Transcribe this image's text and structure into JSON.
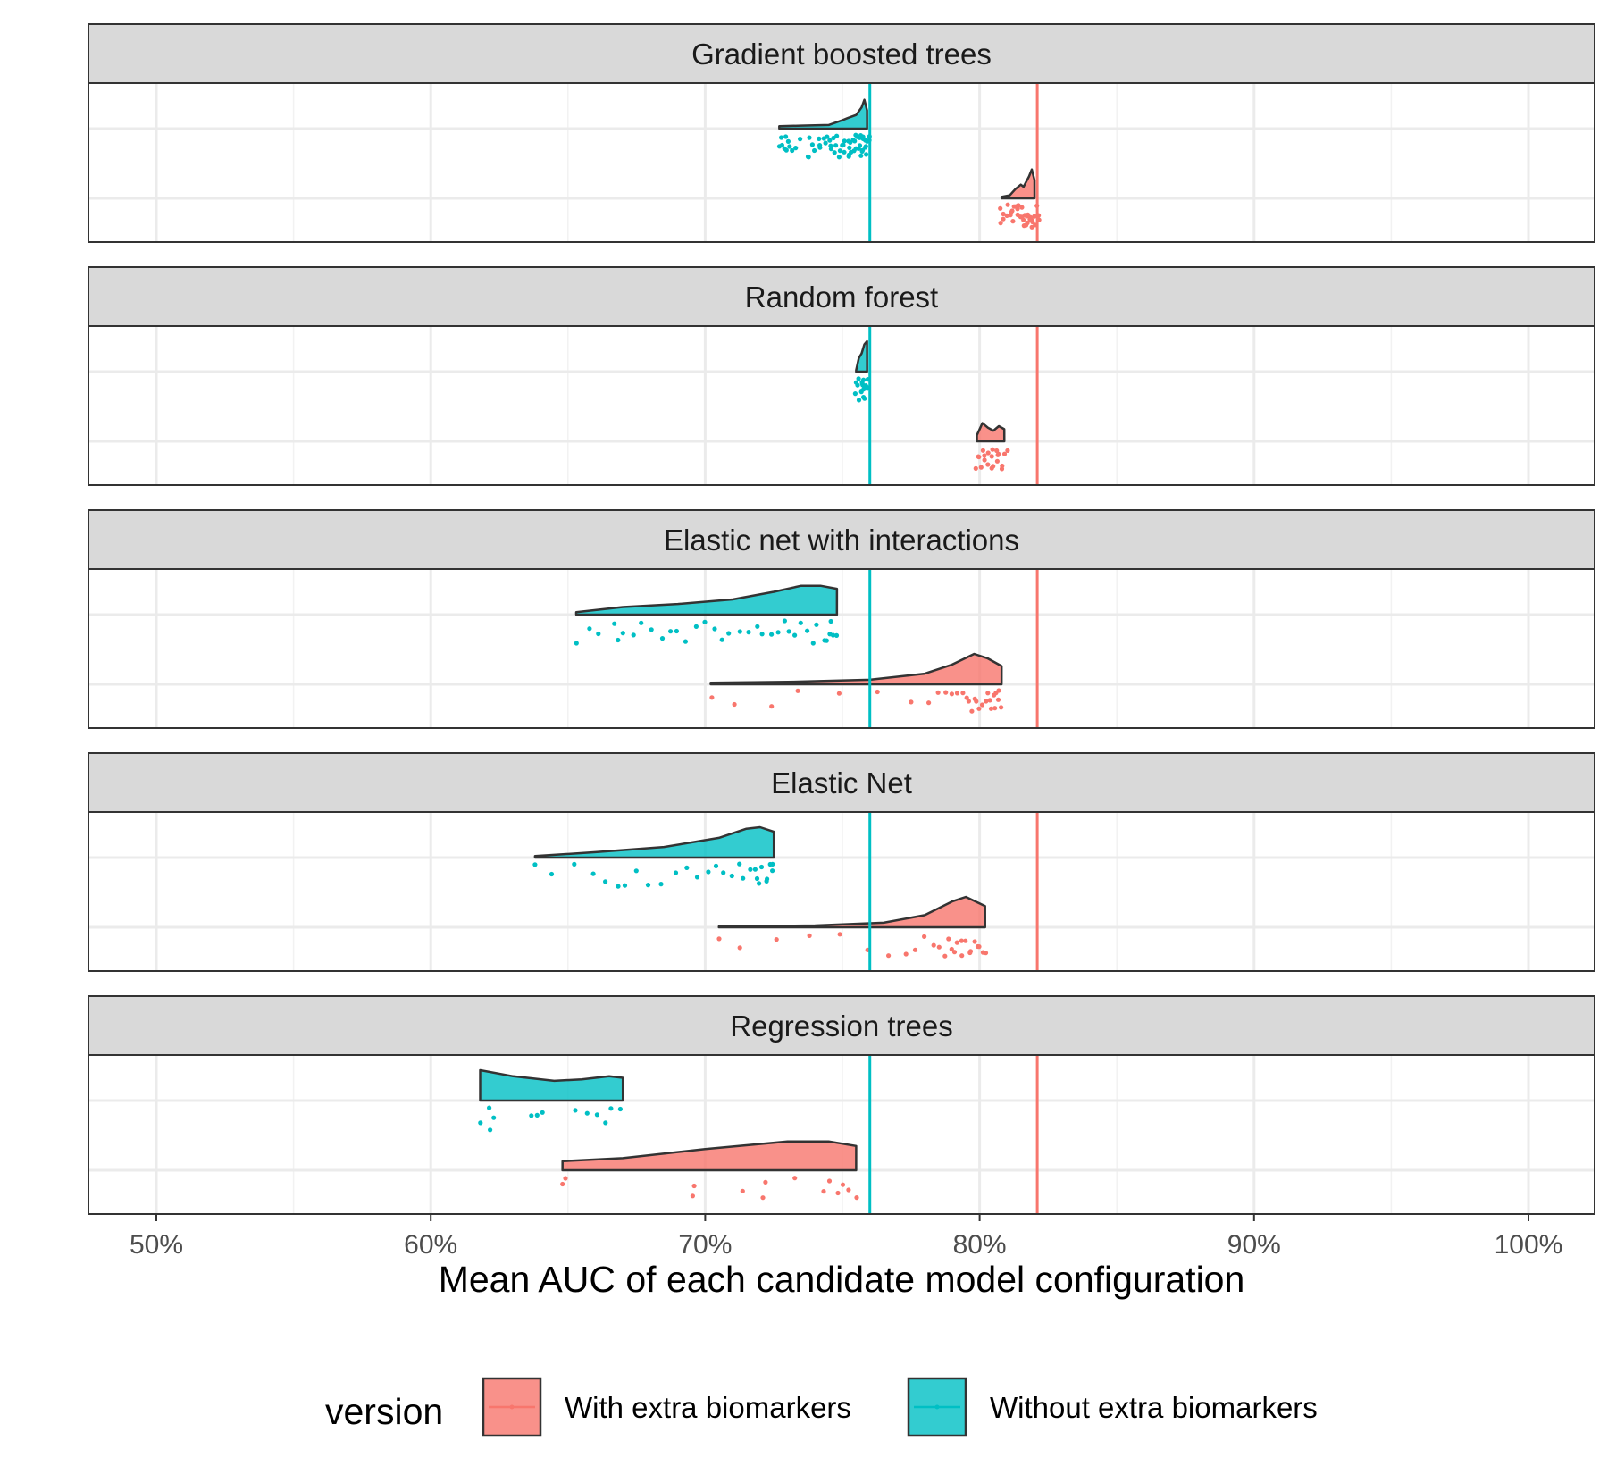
{
  "chart_data": {
    "type": "raincloud",
    "xlabel": "Mean AUC of each candidate model configuration",
    "xlim": [
      0.475,
      1.025
    ],
    "x_ticks": [
      0.5,
      0.6,
      0.7,
      0.8,
      0.9,
      1.0
    ],
    "x_tick_labels": [
      "50%",
      "60%",
      "70%",
      "80%",
      "90%",
      "100%"
    ],
    "grid": true,
    "legend": {
      "title": "version",
      "position": "bottom",
      "entries": [
        {
          "label": "With extra biomarkers",
          "color": "#F8766D"
        },
        {
          "label": "Without extra biomarkers",
          "color": "#00BFC4"
        }
      ]
    },
    "reference_lines": [
      {
        "series": "Without extra biomarkers",
        "x": 0.76,
        "color": "#00BFC4"
      },
      {
        "series": "With extra biomarkers",
        "x": 0.821,
        "color": "#F8766D"
      }
    ],
    "series_colors": {
      "With extra biomarkers": "#F8766D",
      "Without extra biomarkers": "#00BFC4"
    },
    "panels": [
      {
        "title": "Gradient boosted trees",
        "groups": [
          {
            "series": "Without extra biomarkers",
            "density_x": [
              0.727,
              0.735,
              0.745,
              0.75,
              0.752,
              0.755,
              0.757,
              0.758,
              0.759
            ],
            "density_y": [
              0.08,
              0.1,
              0.12,
              0.28,
              0.35,
              0.45,
              0.7,
              0.95,
              0.6
            ],
            "points": [
              0.727,
              0.728,
              0.728,
              0.729,
              0.729,
              0.73,
              0.73,
              0.731,
              0.732,
              0.733,
              0.735,
              0.737,
              0.738,
              0.738,
              0.739,
              0.74,
              0.741,
              0.742,
              0.742,
              0.743,
              0.744,
              0.744,
              0.745,
              0.746,
              0.746,
              0.747,
              0.747,
              0.748,
              0.748,
              0.749,
              0.749,
              0.75,
              0.75,
              0.75,
              0.751,
              0.751,
              0.752,
              0.752,
              0.752,
              0.753,
              0.753,
              0.753,
              0.754,
              0.754,
              0.754,
              0.755,
              0.755,
              0.755,
              0.756,
              0.756,
              0.756,
              0.757,
              0.757,
              0.757,
              0.757,
              0.758,
              0.758,
              0.758,
              0.758,
              0.759,
              0.759,
              0.759,
              0.76,
              0.76
            ]
          },
          {
            "series": "With extra biomarkers",
            "density_x": [
              0.808,
              0.811,
              0.813,
              0.815,
              0.816,
              0.817,
              0.818,
              0.819,
              0.82
            ],
            "density_y": [
              0.05,
              0.1,
              0.3,
              0.45,
              0.38,
              0.55,
              0.72,
              0.95,
              0.6
            ],
            "points": [
              0.808,
              0.808,
              0.809,
              0.809,
              0.81,
              0.81,
              0.811,
              0.811,
              0.812,
              0.812,
              0.813,
              0.813,
              0.814,
              0.814,
              0.814,
              0.815,
              0.815,
              0.815,
              0.816,
              0.816,
              0.816,
              0.817,
              0.817,
              0.817,
              0.818,
              0.818,
              0.818,
              0.819,
              0.819,
              0.819,
              0.82,
              0.82,
              0.821,
              0.821,
              0.822
            ]
          }
        ]
      },
      {
        "title": "Random forest",
        "groups": [
          {
            "series": "Without extra biomarkers",
            "density_x": [
              0.755,
              0.756,
              0.757,
              0.758,
              0.759
            ],
            "density_y": [
              0.05,
              0.45,
              0.6,
              0.9,
              1.0
            ],
            "points": [
              0.755,
              0.755,
              0.756,
              0.756,
              0.756,
              0.757,
              0.757,
              0.757,
              0.757,
              0.758,
              0.758,
              0.758,
              0.758,
              0.758,
              0.759,
              0.759,
              0.759,
              0.759
            ]
          },
          {
            "series": "With extra biomarkers",
            "density_x": [
              0.799,
              0.801,
              0.803,
              0.805,
              0.807,
              0.809
            ],
            "density_y": [
              0.2,
              0.6,
              0.45,
              0.35,
              0.5,
              0.4
            ],
            "points": [
              0.799,
              0.8,
              0.8,
              0.801,
              0.801,
              0.802,
              0.802,
              0.803,
              0.803,
              0.804,
              0.804,
              0.805,
              0.805,
              0.806,
              0.806,
              0.807,
              0.807,
              0.808,
              0.808,
              0.809,
              0.81
            ]
          }
        ]
      },
      {
        "title": "Elastic net with interactions",
        "groups": [
          {
            "series": "Without extra biomarkers",
            "density_x": [
              0.653,
              0.67,
              0.69,
              0.71,
              0.725,
              0.735,
              0.742,
              0.748
            ],
            "density_y": [
              0.08,
              0.25,
              0.35,
              0.5,
              0.75,
              0.95,
              0.95,
              0.85
            ],
            "points": [
              0.653,
              0.658,
              0.661,
              0.667,
              0.668,
              0.67,
              0.674,
              0.677,
              0.68,
              0.684,
              0.687,
              0.69,
              0.693,
              0.697,
              0.7,
              0.703,
              0.706,
              0.709,
              0.713,
              0.716,
              0.719,
              0.721,
              0.724,
              0.727,
              0.729,
              0.731,
              0.733,
              0.735,
              0.737,
              0.739,
              0.741,
              0.743,
              0.744,
              0.745,
              0.746,
              0.747,
              0.748
            ]
          },
          {
            "series": "With extra biomarkers",
            "density_x": [
              0.702,
              0.73,
              0.76,
              0.78,
              0.79,
              0.798,
              0.803,
              0.808
            ],
            "density_y": [
              0.05,
              0.08,
              0.15,
              0.35,
              0.65,
              1.0,
              0.85,
              0.6
            ],
            "points": [
              0.702,
              0.711,
              0.724,
              0.734,
              0.749,
              0.763,
              0.775,
              0.781,
              0.785,
              0.788,
              0.79,
              0.792,
              0.794,
              0.795,
              0.796,
              0.797,
              0.798,
              0.799,
              0.8,
              0.801,
              0.802,
              0.803,
              0.804,
              0.804,
              0.805,
              0.806,
              0.806,
              0.807,
              0.807,
              0.808
            ]
          }
        ]
      },
      {
        "title": "Elastic Net",
        "groups": [
          {
            "series": "Without extra biomarkers",
            "density_x": [
              0.638,
              0.66,
              0.685,
              0.705,
              0.715,
              0.72,
              0.725
            ],
            "density_y": [
              0.05,
              0.18,
              0.35,
              0.65,
              0.95,
              1.0,
              0.85
            ],
            "points": [
              0.638,
              0.644,
              0.652,
              0.659,
              0.664,
              0.668,
              0.671,
              0.675,
              0.679,
              0.684,
              0.689,
              0.693,
              0.697,
              0.701,
              0.704,
              0.707,
              0.71,
              0.712,
              0.714,
              0.716,
              0.718,
              0.719,
              0.72,
              0.721,
              0.722,
              0.723,
              0.724,
              0.724,
              0.725
            ]
          },
          {
            "series": "With extra biomarkers",
            "density_x": [
              0.705,
              0.74,
              0.765,
              0.78,
              0.79,
              0.795,
              0.802
            ],
            "density_y": [
              0.03,
              0.06,
              0.15,
              0.4,
              0.85,
              1.0,
              0.7
            ],
            "points": [
              0.705,
              0.713,
              0.726,
              0.738,
              0.749,
              0.759,
              0.767,
              0.773,
              0.777,
              0.78,
              0.783,
              0.785,
              0.787,
              0.789,
              0.79,
              0.791,
              0.792,
              0.793,
              0.794,
              0.795,
              0.796,
              0.797,
              0.798,
              0.799,
              0.8,
              0.801,
              0.802
            ]
          }
        ]
      },
      {
        "title": "Regression trees",
        "groups": [
          {
            "series": "Without extra biomarkers",
            "density_x": [
              0.618,
              0.63,
              0.645,
              0.655,
              0.665,
              0.67
            ],
            "density_y": [
              1.0,
              0.8,
              0.65,
              0.7,
              0.8,
              0.75
            ],
            "points": [
              0.618,
              0.621,
              0.622,
              0.623,
              0.637,
              0.639,
              0.641,
              0.653,
              0.657,
              0.661,
              0.664,
              0.666,
              0.669
            ]
          },
          {
            "series": "With extra biomarkers",
            "density_x": [
              0.648,
              0.67,
              0.7,
              0.73,
              0.745,
              0.755
            ],
            "density_y": [
              0.3,
              0.4,
              0.7,
              0.95,
              0.95,
              0.8
            ],
            "points": [
              0.648,
              0.649,
              0.695,
              0.696,
              0.714,
              0.721,
              0.722,
              0.733,
              0.743,
              0.745,
              0.748,
              0.75,
              0.752,
              0.755
            ]
          }
        ]
      }
    ]
  }
}
